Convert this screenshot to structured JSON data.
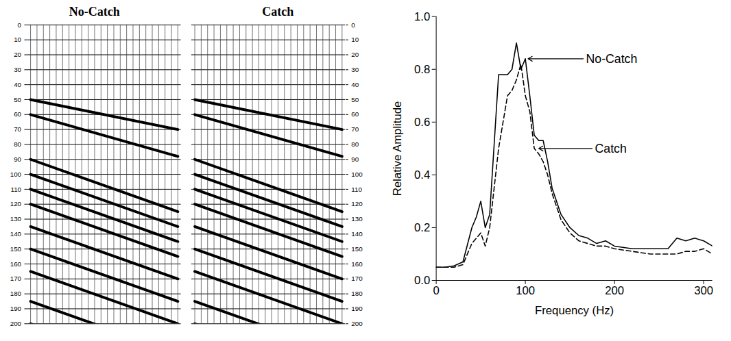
{
  "chart_data": [
    {
      "type": "seismic",
      "title": "No-Catch",
      "ylim": [
        0,
        200
      ],
      "yticks": [
        0,
        10,
        20,
        30,
        40,
        50,
        60,
        70,
        80,
        90,
        100,
        110,
        120,
        130,
        140,
        150,
        160,
        170,
        180,
        190,
        200
      ],
      "grid": true,
      "traces": 24,
      "events": [
        {
          "t": [
            50,
            70
          ]
        },
        {
          "t": [
            60,
            88
          ]
        },
        {
          "t": [
            90,
            125
          ]
        },
        {
          "t": [
            100,
            135
          ]
        },
        {
          "t": [
            110,
            145
          ]
        },
        {
          "t": [
            120,
            155
          ]
        },
        {
          "t": [
            135,
            170
          ]
        },
        {
          "t": [
            150,
            185
          ]
        },
        {
          "t": [
            165,
            200
          ]
        },
        {
          "t": [
            185,
            220
          ]
        },
        {
          "t": [
            200,
            235
          ]
        }
      ]
    },
    {
      "type": "seismic",
      "title": "Catch",
      "ylim": [
        0,
        200
      ],
      "yticks": [
        0,
        10,
        20,
        30,
        40,
        50,
        60,
        70,
        80,
        90,
        100,
        110,
        120,
        130,
        140,
        150,
        160,
        170,
        180,
        190,
        200
      ],
      "grid": true,
      "traces": 24,
      "events": [
        {
          "t": [
            50,
            70
          ]
        },
        {
          "t": [
            60,
            88
          ]
        },
        {
          "t": [
            90,
            125
          ]
        },
        {
          "t": [
            100,
            135
          ]
        },
        {
          "t": [
            110,
            145
          ]
        },
        {
          "t": [
            120,
            155
          ]
        },
        {
          "t": [
            135,
            170
          ]
        },
        {
          "t": [
            150,
            185
          ]
        },
        {
          "t": [
            165,
            200
          ]
        },
        {
          "t": [
            185,
            220
          ]
        },
        {
          "t": [
            200,
            235
          ]
        }
      ]
    },
    {
      "type": "line",
      "x_label": "Frequency (Hz)",
      "y_label": "Relative Amplitude",
      "xlim": [
        0,
        310
      ],
      "xticks": [
        0,
        100,
        200,
        300
      ],
      "ylim": [
        0,
        1
      ],
      "yticks": [
        {
          "value": 0,
          "label": "0.0"
        },
        {
          "value": 0.2,
          "label": "0.2"
        },
        {
          "value": 0.4,
          "label": "0.4"
        },
        {
          "value": 0.6,
          "label": "0.6"
        },
        {
          "value": 0.8,
          "label": "0.8"
        },
        {
          "value": 1,
          "label": "1.0"
        }
      ],
      "x": [
        0,
        10,
        20,
        30,
        40,
        45,
        50,
        55,
        60,
        70,
        80,
        85,
        90,
        95,
        100,
        105,
        110,
        115,
        120,
        125,
        130,
        140,
        150,
        160,
        170,
        180,
        190,
        200,
        220,
        240,
        260,
        270,
        280,
        290,
        300,
        310
      ],
      "series": [
        {
          "name": "No-Catch",
          "color": "#000000",
          "line_style": "solid",
          "values": [
            0.05,
            0.05,
            0.055,
            0.07,
            0.2,
            0.24,
            0.3,
            0.2,
            0.25,
            0.78,
            0.78,
            0.8,
            0.9,
            0.8,
            0.84,
            0.7,
            0.55,
            0.53,
            0.53,
            0.45,
            0.35,
            0.25,
            0.2,
            0.17,
            0.16,
            0.14,
            0.15,
            0.13,
            0.12,
            0.12,
            0.12,
            0.16,
            0.15,
            0.16,
            0.15,
            0.13
          ]
        },
        {
          "name": "Catch",
          "color": "#000000",
          "line_style": "dashed",
          "values": [
            0.05,
            0.05,
            0.05,
            0.06,
            0.14,
            0.16,
            0.18,
            0.13,
            0.2,
            0.5,
            0.7,
            0.72,
            0.76,
            0.82,
            0.7,
            0.64,
            0.5,
            0.48,
            0.45,
            0.4,
            0.33,
            0.23,
            0.18,
            0.15,
            0.14,
            0.13,
            0.13,
            0.12,
            0.11,
            0.1,
            0.1,
            0.1,
            0.11,
            0.11,
            0.12,
            0.1
          ]
        }
      ],
      "annotations": [
        {
          "text": "No-Catch",
          "x": 165,
          "y": 0.84,
          "arrow_x": 103,
          "arrow_y": 0.84
        },
        {
          "text": "Catch",
          "x": 175,
          "y": 0.5,
          "arrow_x": 115,
          "arrow_y": 0.5
        }
      ]
    }
  ]
}
